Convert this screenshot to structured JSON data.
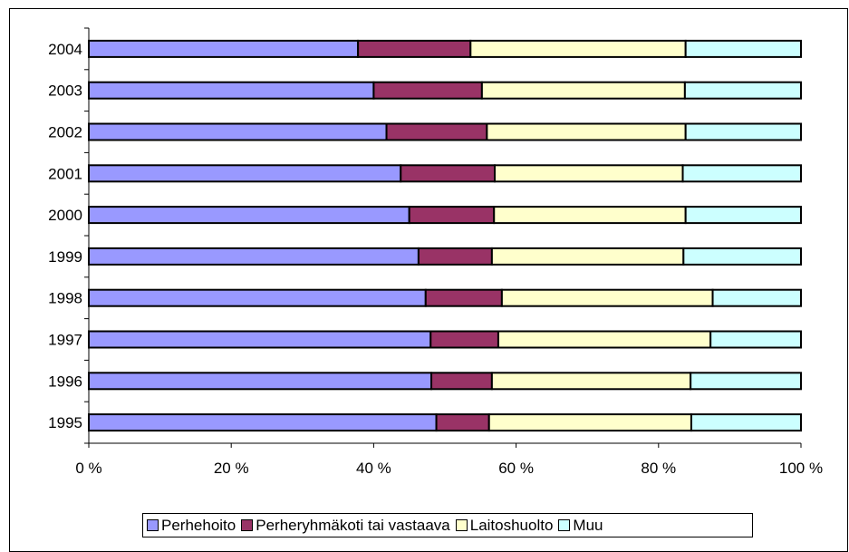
{
  "chart_data": {
    "type": "bar",
    "orientation": "horizontal",
    "stacked": "percent",
    "categories": [
      "2004",
      "2003",
      "2002",
      "2001",
      "2000",
      "1999",
      "1998",
      "1997",
      "1996",
      "1995"
    ],
    "series": [
      {
        "name": "Perhehoito",
        "color": "#9999ff",
        "values": [
          37.8,
          40.0,
          41.8,
          43.8,
          45.0,
          46.3,
          47.3,
          48.0,
          48.1,
          48.8
        ]
      },
      {
        "name": "Perheryhmäkoti tai vastaava",
        "color": "#993366",
        "values": [
          15.8,
          15.2,
          14.1,
          13.2,
          11.9,
          10.3,
          10.7,
          9.5,
          8.5,
          7.4
        ]
      },
      {
        "name": "Laitoshuolto",
        "color": "#ffffcc",
        "values": [
          30.2,
          28.5,
          27.9,
          26.4,
          26.9,
          26.9,
          29.6,
          29.8,
          27.9,
          28.4
        ]
      },
      {
        "name": "Muu",
        "color": "#ccffff",
        "values": [
          16.2,
          16.3,
          16.2,
          16.6,
          16.2,
          16.5,
          12.4,
          12.7,
          15.5,
          15.4
        ]
      }
    ],
    "xaxis": {
      "ticks": [
        "0 %",
        "20 %",
        "40 %",
        "60 %",
        "80 %",
        "100 %"
      ],
      "range": [
        0,
        100
      ]
    },
    "grid": false,
    "legend_position": "bottom"
  }
}
